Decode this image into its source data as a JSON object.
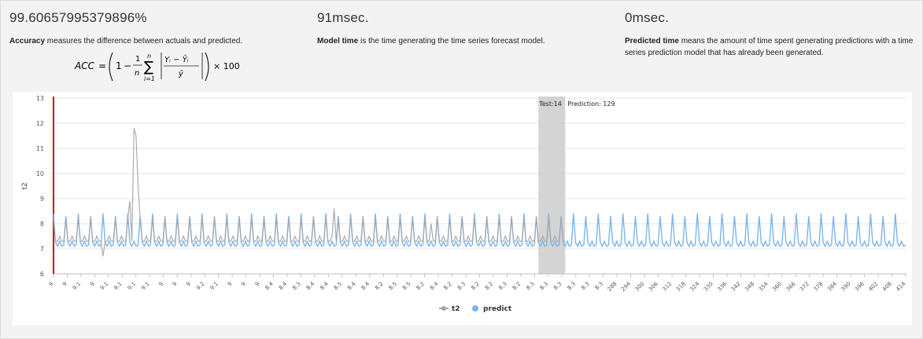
{
  "metrics": [
    {
      "value": "99.60657995379896%",
      "term": "Accuracy",
      "description": " measures the difference between actuals and predicted."
    },
    {
      "value": "91msec.",
      "term": "Model time",
      "description": " is the time generating the time series forecast model."
    },
    {
      "value": "0msec.",
      "term": "Predicted time",
      "description": " means the amount of time spent generating predictions with a time series prediction model that has already been generated."
    }
  ],
  "formula": {
    "lhs": "ACC",
    "frac_num": "1",
    "frac_den": "n",
    "sum_top": "n",
    "sum_bottom": "i=1",
    "inner_num": "Yᵢ − Ŷᵢ",
    "inner_den": "ȳ",
    "times": "× 100"
  },
  "chart_data": {
    "type": "line",
    "title": "",
    "xlabel": "",
    "ylabel": "t2",
    "ylim": [
      6,
      13
    ],
    "yticks": [
      6,
      7,
      8,
      9,
      10,
      11,
      12,
      13
    ],
    "grid": true,
    "legend_position": "bottom-center",
    "x_tick_labels": [
      "9",
      "9",
      "9.1",
      "9",
      "9.1",
      "9.1",
      "9.1",
      "9.1",
      "9",
      "9",
      "9",
      "9.2",
      "9.1",
      "9",
      "9",
      "9",
      "8.4",
      "8.4",
      "8.3",
      "8.4",
      "8.4",
      "8.5",
      "8.4",
      "8.4",
      "8.2",
      "8.5",
      "8.5",
      "8.2",
      "8.4",
      "8.2",
      "8.3",
      "8.2",
      "8.2",
      "8.3",
      "8.2",
      "8.3",
      "8.3",
      "8.3",
      "8.3",
      "8.3",
      "8.3",
      "288",
      "294",
      "300",
      "306",
      "312",
      "318",
      "324",
      "330",
      "336",
      "342",
      "348",
      "354",
      "360",
      "366",
      "372",
      "378",
      "384",
      "390",
      "396",
      "402",
      "408",
      "414"
    ],
    "annotation": {
      "test_label": "Test:14",
      "prediction_label": "Prediction: 129",
      "test_start_index": 235,
      "test_end_index": 248
    },
    "series": [
      {
        "name": "t2",
        "color": "#a6a6a6",
        "n_points": 249,
        "baseline": 7.3,
        "notable_points": [
          [
            24,
            6.7
          ],
          [
            37,
            8.9
          ],
          [
            39,
            11.8
          ],
          [
            40,
            11.5
          ],
          [
            41,
            9.5
          ],
          [
            136,
            8.6
          ],
          [
            183,
            8.0
          ]
        ]
      },
      {
        "name": "predict",
        "color": "#7cb5ec",
        "n_points": 414,
        "level_low": 7.1,
        "level_high": 8.4,
        "period": 6
      }
    ],
    "x_count": 414
  },
  "colors": {
    "accent_line": "#cc1111",
    "highlight_band": "#d4d4d4",
    "grid": "#e6e6e6"
  }
}
